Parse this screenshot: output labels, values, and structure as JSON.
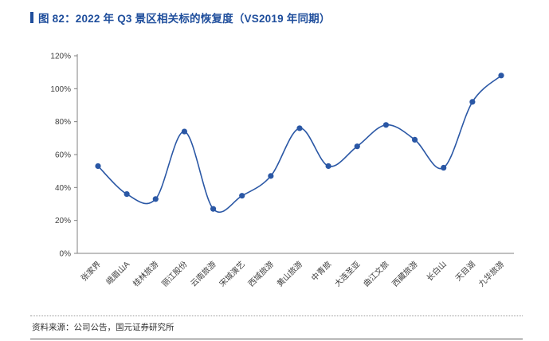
{
  "header": {
    "title": "图 82：2022 年 Q3 景区相关标的恢复度（VS2019 年同期）"
  },
  "footer": {
    "source": "资料来源：公司公告，国元证券研究所"
  },
  "colors": {
    "accent": "#1F4E9C",
    "line": "#2A57A5",
    "marker": "#2A57A5",
    "axis": "#808080",
    "tick_text": "#404040"
  },
  "chart_data": {
    "type": "line",
    "title": "2022 年 Q3 景区相关标的恢复度（VS2019 年同期）",
    "categories": [
      "张家界",
      "峨眉山A",
      "桂林旅游",
      "丽江股份",
      "云南旅游",
      "宋城演艺",
      "西域旅游",
      "黄山旅游",
      "中青旅",
      "大连圣亚",
      "曲江文旅",
      "西藏旅游",
      "长白山",
      "天目湖",
      "九华旅游"
    ],
    "values": [
      53,
      36,
      33,
      74,
      27,
      35,
      47,
      76,
      53,
      65,
      78,
      69,
      52,
      92,
      108
    ],
    "xlabel": "",
    "ylabel": "",
    "ylim": [
      0,
      120
    ],
    "ytick_step": 20,
    "ytick_suffix": "%",
    "grid": false,
    "legend": "none",
    "marker": "circle",
    "smooth": true
  }
}
